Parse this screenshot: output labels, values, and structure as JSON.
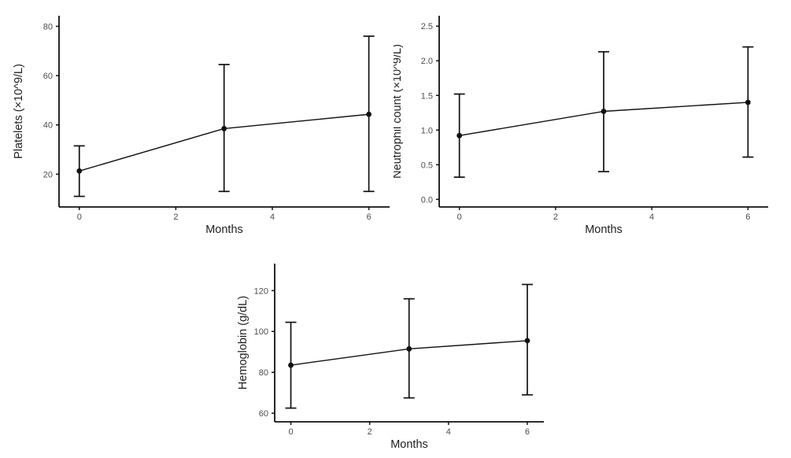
{
  "figure": {
    "description": "Panel of three error-bar line charts showing blood count recovery over months",
    "background": "#ffffff"
  },
  "style": {
    "axis_color": "#111111",
    "series_color": "#111111",
    "tick_label_color": "#4d4d4d",
    "axis_title_color": "#1f1f1f",
    "tick_font_size": 11,
    "title_font_size": 14.5
  },
  "chart_data": [
    {
      "key": "platelets",
      "type": "line",
      "title": "",
      "xlabel": "Months",
      "ylabel": "Platelets (×10^9/L)",
      "x": [
        0,
        3,
        6
      ],
      "y": [
        21.3,
        38.5,
        44.3
      ],
      "err_low": [
        11,
        13,
        13
      ],
      "err_high": [
        31.5,
        64.5,
        76
      ],
      "xticks": [
        0,
        2,
        4,
        6
      ],
      "xtick_labels": [
        "0",
        "2",
        "4",
        "6"
      ],
      "yticks": [
        20,
        40,
        60,
        80
      ],
      "ytick_labels": [
        "20",
        "40",
        "60",
        "80"
      ],
      "xlim": [
        -0.42,
        6.43
      ],
      "ylim": [
        6.7,
        84.3
      ],
      "grid": false,
      "legend": "none"
    },
    {
      "key": "neutrophil_count",
      "type": "line",
      "title": "",
      "xlabel": "Months",
      "ylabel": "Neutrophil count (×10^9/L)",
      "x": [
        0,
        3,
        6
      ],
      "y": [
        0.92,
        1.27,
        1.4
      ],
      "err_low": [
        0.32,
        0.4,
        0.61
      ],
      "err_high": [
        1.52,
        2.13,
        2.2
      ],
      "xticks": [
        0,
        2,
        4,
        6
      ],
      "xtick_labels": [
        "0",
        "2",
        "4",
        "6"
      ],
      "yticks": [
        0,
        0.5,
        1,
        1.5,
        2,
        2.5
      ],
      "ytick_labels": [
        "0.0",
        "0.5",
        "1.0",
        "1.5",
        "2.0",
        "2.5"
      ],
      "xlim": [
        -0.42,
        6.42
      ],
      "ylim": [
        -0.11,
        2.65
      ],
      "grid": false,
      "legend": "none"
    },
    {
      "key": "hemoglobin",
      "type": "line",
      "title": "",
      "xlabel": "Months",
      "ylabel": "Hemoglobin (g/dL)",
      "x": [
        0,
        3,
        6
      ],
      "y": [
        83.5,
        91.5,
        95.5
      ],
      "err_low": [
        62.5,
        67.5,
        69
      ],
      "err_high": [
        104.5,
        116,
        123
      ],
      "xticks": [
        0,
        2,
        4,
        6
      ],
      "xtick_labels": [
        "0",
        "2",
        "4",
        "6"
      ],
      "yticks": [
        60,
        80,
        100,
        120
      ],
      "ytick_labels": [
        "60",
        "80",
        "100",
        "120"
      ],
      "xlim": [
        -0.41,
        6.42
      ],
      "ylim": [
        55.8,
        133.2
      ],
      "grid": false,
      "legend": "none"
    }
  ]
}
